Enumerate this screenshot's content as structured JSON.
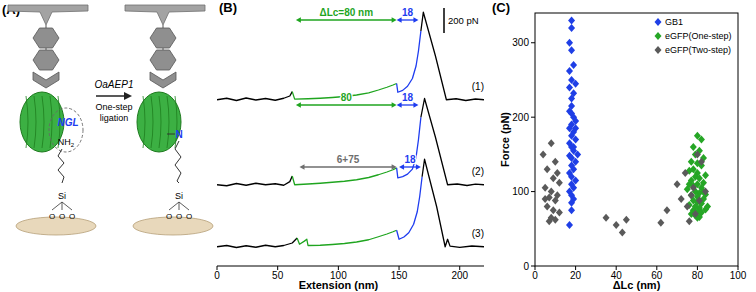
{
  "diagram": {
    "title": "(A)",
    "enzyme": "OaAEP1",
    "step": [
      "One-step",
      "ligation"
    ],
    "before": {
      "motif": "NGL",
      "amine": "NH",
      "amine_sub": "2",
      "silicon": "Si",
      "oxygen": [
        "O",
        "O",
        "O"
      ]
    },
    "after": {
      "link": "N",
      "silicon": "Si",
      "oxygen": [
        "O",
        "O",
        "O"
      ]
    }
  },
  "chart_data": [
    {
      "type": "line",
      "title": "(B)",
      "x_label": "Extension (nm)",
      "xlim": [
        0,
        220
      ],
      "xticks": [
        0,
        50,
        100,
        150,
        200
      ],
      "ylim": [
        -150,
        750
      ],
      "tick_labels": "x",
      "scale_bar": {
        "value": 200,
        "label": "200 pN"
      },
      "series": [
        {
          "name": "(1)",
          "x": [
            0,
            8,
            16,
            24,
            32,
            40,
            48,
            55,
            60,
            62,
            64,
            75,
            85,
            95,
            105,
            115,
            125,
            133,
            140,
            145,
            148,
            149,
            153,
            157,
            161,
            164,
            166,
            168,
            170,
            180,
            189,
            197,
            205,
            213,
            220
          ],
          "values": [
            0,
            12,
            -6,
            14,
            -2,
            10,
            -4,
            12,
            30,
            65,
            5,
            8,
            12,
            18,
            26,
            38,
            55,
            78,
            100,
            118,
            130,
            60,
            75,
            108,
            170,
            270,
            390,
            550,
            700,
            350,
            0,
            8,
            -6,
            6,
            0
          ],
          "colors": [
            "#000000",
            "#000000",
            "#000000",
            "#000000",
            "#000000",
            "#000000",
            "#000000",
            "#000000",
            "#000000",
            "#000000",
            "#1fa51f",
            "#1fa51f",
            "#1fa51f",
            "#1fa51f",
            "#1fa51f",
            "#1fa51f",
            "#1fa51f",
            "#1fa51f",
            "#1fa51f",
            "#1fa51f",
            "#1fa51f",
            "#1e3cf0",
            "#1e3cf0",
            "#1e3cf0",
            "#1e3cf0",
            "#1e3cf0",
            "#1e3cf0",
            "#1e3cf0",
            "#000000",
            "#000000",
            "#000000",
            "#000000",
            "#000000",
            "#000000",
            "#000000"
          ],
          "annotations": [
            {
              "text": "ΔLc=80 nm",
              "x": [
                65,
                148
              ],
              "color": "#1fa51f"
            },
            {
              "text": "18",
              "x": [
                148,
                166
              ],
              "color": "#1e3cf0"
            }
          ]
        },
        {
          "name": "(2)",
          "x": [
            0,
            8,
            16,
            24,
            32,
            40,
            48,
            55,
            60,
            62,
            64,
            75,
            85,
            95,
            105,
            115,
            125,
            133,
            140,
            145,
            148,
            149,
            153,
            157,
            161,
            164,
            166,
            168,
            171,
            180,
            190,
            198,
            206,
            213,
            220
          ],
          "values": [
            0,
            -8,
            10,
            -4,
            12,
            0,
            8,
            -4,
            25,
            70,
            0,
            6,
            12,
            20,
            28,
            40,
            58,
            80,
            102,
            120,
            135,
            55,
            65,
            85,
            125,
            220,
            360,
            540,
            690,
            380,
            0,
            6,
            -6,
            5,
            0
          ],
          "colors": [
            "#000000",
            "#000000",
            "#000000",
            "#000000",
            "#000000",
            "#000000",
            "#000000",
            "#000000",
            "#000000",
            "#000000",
            "#1fa51f",
            "#1fa51f",
            "#1fa51f",
            "#1fa51f",
            "#1fa51f",
            "#1fa51f",
            "#1fa51f",
            "#1fa51f",
            "#1fa51f",
            "#1fa51f",
            "#1fa51f",
            "#1e3cf0",
            "#1e3cf0",
            "#1e3cf0",
            "#1e3cf0",
            "#1e3cf0",
            "#1e3cf0",
            "#1e3cf0",
            "#000000",
            "#000000",
            "#000000",
            "#000000",
            "#000000",
            "#000000",
            "#000000"
          ],
          "annotations": [
            {
              "text": "80",
              "x": [
                65,
                148
              ],
              "color": "#1fa51f"
            },
            {
              "text": "18",
              "x": [
                148,
                166
              ],
              "color": "#1e3cf0"
            }
          ]
        },
        {
          "name": "(3)",
          "x": [
            0,
            8,
            16,
            24,
            32,
            40,
            48,
            55,
            62,
            66,
            68,
            72,
            74,
            75,
            85,
            95,
            105,
            115,
            125,
            133,
            140,
            145,
            148,
            150,
            154,
            158,
            162,
            165,
            167,
            169,
            171,
            181,
            188,
            190,
            192,
            200,
            210,
            220
          ],
          "values": [
            0,
            10,
            -6,
            8,
            -4,
            12,
            0,
            10,
            30,
            70,
            20,
            45,
            60,
            10,
            12,
            18,
            26,
            38,
            56,
            80,
            102,
            120,
            132,
            60,
            78,
            112,
            180,
            280,
            400,
            560,
            700,
            320,
            0,
            60,
            5,
            -5,
            6,
            0
          ],
          "colors": [
            "#000000",
            "#000000",
            "#000000",
            "#000000",
            "#000000",
            "#000000",
            "#000000",
            "#000000",
            "#000000",
            "#000000",
            "#1fa51f",
            "#1fa51f",
            "#1fa51f",
            "#1fa51f",
            "#1fa51f",
            "#1fa51f",
            "#1fa51f",
            "#1fa51f",
            "#1fa51f",
            "#1fa51f",
            "#1fa51f",
            "#1fa51f",
            "#1fa51f",
            "#1e3cf0",
            "#1e3cf0",
            "#1e3cf0",
            "#1e3cf0",
            "#1e3cf0",
            "#1e3cf0",
            "#1e3cf0",
            "#000000",
            "#000000",
            "#000000",
            "#000000",
            "#000000",
            "#000000",
            "#000000",
            "#000000"
          ],
          "annotations": [
            {
              "text": "6+75",
              "x": [
                68,
                148
              ],
              "color": "#6e6e6e"
            },
            {
              "text": "18",
              "x": [
                150,
                168
              ],
              "color": "#1e3cf0"
            }
          ]
        }
      ]
    },
    {
      "type": "scatter",
      "title": "(C)",
      "x_label": "ΔLc (nm)",
      "y_label": "Force (pN)",
      "xlim": [
        0,
        100
      ],
      "xticks": [
        0,
        20,
        40,
        60,
        80,
        100
      ],
      "ylim": [
        0,
        340
      ],
      "yticks": [
        0,
        100,
        200,
        300
      ],
      "legend": "upper right",
      "marker": "diamond",
      "series": [
        {
          "name": "GB1",
          "color": "#1f3fe6",
          "x": [
            18,
            18,
            17,
            18,
            19,
            17,
            18,
            20,
            17,
            19,
            18,
            18,
            17,
            19,
            20,
            18,
            17,
            19,
            18,
            20,
            17,
            18,
            19,
            21,
            17,
            18,
            20,
            18,
            19,
            17,
            18,
            20,
            18,
            19,
            17,
            18,
            19,
            18,
            18,
            17,
            20,
            18,
            19
          ],
          "values": [
            330,
            320,
            300,
            290,
            270,
            262,
            250,
            245,
            240,
            232,
            225,
            215,
            208,
            200,
            195,
            190,
            185,
            180,
            175,
            170,
            165,
            160,
            155,
            150,
            148,
            145,
            140,
            135,
            130,
            125,
            120,
            115,
            110,
            105,
            100,
            95,
            90,
            85,
            75,
            55,
            185,
            205,
            160
          ]
        },
        {
          "name": "eGFP(One-step)",
          "color": "#26a626",
          "x": [
            80,
            82,
            78,
            81,
            79,
            83,
            77,
            80,
            82,
            78,
            76,
            80,
            84,
            79,
            81,
            77,
            83,
            80,
            78,
            82,
            75,
            79,
            81,
            84,
            77,
            80,
            83,
            78,
            80,
            82,
            76,
            79,
            81,
            84,
            78,
            80,
            82,
            77,
            79,
            81,
            80,
            83,
            76,
            85
          ],
          "values": [
            175,
            170,
            160,
            155,
            150,
            145,
            140,
            138,
            135,
            130,
            128,
            125,
            122,
            120,
            118,
            115,
            112,
            110,
            108,
            105,
            103,
            100,
            98,
            96,
            95,
            93,
            90,
            88,
            86,
            84,
            82,
            80,
            78,
            76,
            75,
            73,
            72,
            70,
            68,
            66,
            65,
            100,
            110,
            80
          ]
        },
        {
          "name": "eGFP(Two-step)",
          "color": "#5a5a5a",
          "x": [
            8,
            4,
            10,
            6,
            9,
            12,
            5,
            8,
            11,
            7,
            10,
            6,
            9,
            12,
            8,
            10,
            7,
            5,
            11,
            35,
            40,
            43,
            45,
            62,
            65,
            70,
            72,
            74,
            75,
            77,
            78,
            80,
            82,
            79,
            76,
            81,
            84
          ],
          "values": [
            165,
            150,
            140,
            130,
            118,
            112,
            105,
            100,
            95,
            92,
            88,
            80,
            75,
            72,
            65,
            62,
            60,
            90,
            125,
            65,
            55,
            45,
            62,
            58,
            75,
            110,
            90,
            125,
            80,
            95,
            105,
            150,
            140,
            70,
            60,
            88,
            100
          ]
        }
      ]
    }
  ]
}
